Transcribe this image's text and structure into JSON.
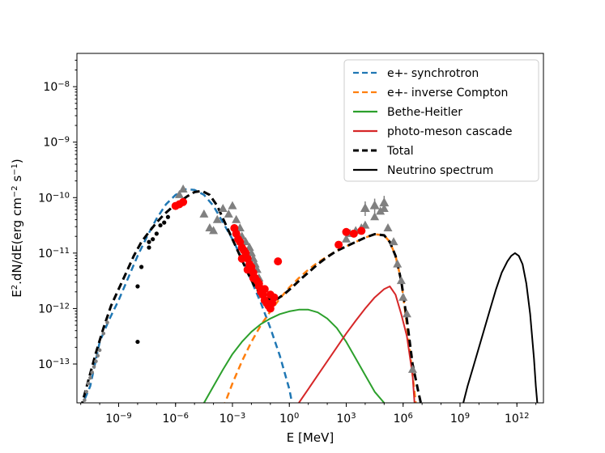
{
  "chart_data": {
    "type": "line",
    "title": "",
    "xlabel": "E [MeV]",
    "ylabel_main": "E",
    "ylabel_sup2": "2",
    "ylabel_rest": ".dN/dE(erg cm",
    "ylabel_sup_neg2": "−2",
    "ylabel_s": " s",
    "ylabel_sup_neg1": "−1",
    "ylabel_close": ")",
    "xscale": "log",
    "yscale": "log",
    "xlim_log10": [
      -11.2,
      13.4
    ],
    "ylim_log10": [
      -13.7,
      -7.4
    ],
    "x_ticks": [
      {
        "log": -9,
        "base": "10",
        "exp": "−9"
      },
      {
        "log": -6,
        "base": "10",
        "exp": "−6"
      },
      {
        "log": -3,
        "base": "10",
        "exp": "−3"
      },
      {
        "log": 0,
        "base": "10",
        "exp": "0"
      },
      {
        "log": 3,
        "base": "10",
        "exp": "3"
      },
      {
        "log": 6,
        "base": "10",
        "exp": "6"
      },
      {
        "log": 9,
        "base": "10",
        "exp": "9"
      },
      {
        "log": 12,
        "base": "10",
        "exp": "12"
      }
    ],
    "y_ticks": [
      {
        "log": -8,
        "base": "10",
        "exp": "−8"
      },
      {
        "log": -9,
        "base": "10",
        "exp": "−9"
      },
      {
        "log": -10,
        "base": "10",
        "exp": "−10"
      },
      {
        "log": -11,
        "base": "10",
        "exp": "−11"
      },
      {
        "log": -12,
        "base": "10",
        "exp": "−12"
      },
      {
        "log": -13,
        "base": "10",
        "exp": "−13"
      }
    ],
    "legend_position": "top-right",
    "series": [
      {
        "name": "e+- synchrotron",
        "color": "#1f77b4",
        "dash": true,
        "log_x": [
          -11.0,
          -10.5,
          -10.0,
          -9.5,
          -9.0,
          -8.5,
          -8.0,
          -7.5,
          -7.0,
          -6.5,
          -6.0,
          -5.5,
          -5.0,
          -4.5,
          -4.0,
          -3.5,
          -3.0,
          -2.5,
          -2.0,
          -1.5,
          -1.0,
          -0.5,
          0.0,
          0.2
        ],
        "log_y": [
          -13.8,
          -13.4,
          -12.6,
          -12.2,
          -11.85,
          -11.45,
          -11.05,
          -10.7,
          -10.38,
          -10.12,
          -9.95,
          -9.85,
          -9.86,
          -9.95,
          -10.15,
          -10.45,
          -10.75,
          -11.1,
          -11.5,
          -11.9,
          -12.35,
          -12.85,
          -13.45,
          -13.8
        ]
      },
      {
        "name": "e+- inverse Compton",
        "color": "#ff7f0e",
        "dash": true,
        "log_x": [
          -3.5,
          -3.0,
          -2.5,
          -2.0,
          -1.5,
          -1.0,
          -0.5,
          0.0,
          0.5,
          1.0,
          1.5,
          2.0,
          2.5,
          3.0,
          3.5,
          4.0,
          4.5,
          5.0,
          5.3,
          5.6,
          5.9,
          6.2,
          6.5,
          6.7
        ],
        "log_y": [
          -13.8,
          -13.35,
          -12.95,
          -12.6,
          -12.3,
          -12.05,
          -11.82,
          -11.62,
          -11.45,
          -11.3,
          -11.17,
          -11.06,
          -10.96,
          -10.88,
          -10.8,
          -10.72,
          -10.66,
          -10.68,
          -10.8,
          -11.05,
          -11.5,
          -12.3,
          -13.2,
          -13.8
        ]
      },
      {
        "name": "Bethe-Heitler",
        "color": "#2ca02c",
        "dash": false,
        "log_x": [
          -4.5,
          -4.0,
          -3.5,
          -3.0,
          -2.5,
          -2.0,
          -1.5,
          -1.0,
          -0.5,
          0.0,
          0.5,
          1.0,
          1.5,
          2.0,
          2.5,
          3.0,
          3.5,
          4.0,
          4.5,
          5.0
        ],
        "log_y": [
          -13.7,
          -13.4,
          -13.1,
          -12.82,
          -12.6,
          -12.42,
          -12.28,
          -12.18,
          -12.1,
          -12.05,
          -12.02,
          -12.02,
          -12.07,
          -12.18,
          -12.35,
          -12.6,
          -12.9,
          -13.2,
          -13.5,
          -13.7
        ]
      },
      {
        "name": "photo-meson cascade",
        "color": "#d62728",
        "dash": false,
        "log_x": [
          0.5,
          1.0,
          1.5,
          2.0,
          2.5,
          3.0,
          3.5,
          4.0,
          4.5,
          5.0,
          5.3,
          5.6,
          5.9,
          6.2,
          6.5,
          6.6
        ],
        "log_y": [
          -13.7,
          -13.45,
          -13.2,
          -12.95,
          -12.7,
          -12.45,
          -12.22,
          -12.0,
          -11.8,
          -11.65,
          -11.6,
          -11.75,
          -12.1,
          -12.5,
          -13.2,
          -13.7
        ]
      },
      {
        "name": "Total",
        "color": "#000000",
        "dash": true,
        "bold": true,
        "log_x": [
          -11.0,
          -10.6,
          -10.2,
          -9.8,
          -9.4,
          -9.0,
          -8.6,
          -8.2,
          -7.8,
          -7.4,
          -7.0,
          -6.6,
          -6.2,
          -5.8,
          -5.4,
          -5.0,
          -4.6,
          -4.2,
          -3.8,
          -3.4,
          -3.0,
          -2.6,
          -2.2,
          -1.8,
          -1.4,
          -1.0,
          -0.6,
          -0.2,
          0.2,
          0.6,
          1.0,
          1.5,
          2.0,
          2.5,
          3.0,
          3.5,
          4.0,
          4.5,
          5.0,
          5.3,
          5.6,
          5.9,
          6.2,
          6.5,
          6.8,
          7.0
        ],
        "log_y": [
          -13.8,
          -13.3,
          -12.8,
          -12.35,
          -11.95,
          -11.65,
          -11.35,
          -11.05,
          -10.8,
          -10.62,
          -10.45,
          -10.3,
          -10.18,
          -10.08,
          -9.98,
          -9.9,
          -9.88,
          -9.95,
          -10.15,
          -10.45,
          -10.75,
          -11.05,
          -11.35,
          -11.62,
          -11.78,
          -11.85,
          -11.82,
          -11.72,
          -11.6,
          -11.47,
          -11.35,
          -11.2,
          -11.07,
          -10.96,
          -10.88,
          -10.8,
          -10.72,
          -10.66,
          -10.68,
          -10.8,
          -11.05,
          -11.5,
          -12.2,
          -13.0,
          -13.5,
          -13.8
        ]
      },
      {
        "name": "Neutrino spectrum",
        "color": "#000000",
        "dash": false,
        "log_x": [
          9.1,
          9.4,
          9.7,
          10.0,
          10.3,
          10.6,
          10.9,
          11.2,
          11.5,
          11.7,
          11.9,
          12.1,
          12.3,
          12.5,
          12.7,
          12.9,
          13.0,
          13.1
        ],
        "log_y": [
          -13.8,
          -13.4,
          -13.05,
          -12.7,
          -12.35,
          -12.0,
          -11.65,
          -11.35,
          -11.15,
          -11.05,
          -11.0,
          -11.05,
          -11.2,
          -11.55,
          -12.1,
          -12.9,
          -13.4,
          -13.8
        ]
      }
    ],
    "observations": [
      {
        "name": "grey-dots",
        "color": "#7f7f7f",
        "marker": "circle",
        "log_x": [
          -10.8,
          -10.7,
          -10.6,
          -10.5,
          -10.4,
          -10.3,
          -10.2,
          -10.1,
          -10.0,
          -9.8,
          -9.6
        ],
        "log_y": [
          -13.65,
          -13.5,
          -13.35,
          -13.25,
          -13.15,
          -13.05,
          -12.95,
          -12.85,
          -12.75,
          -12.45,
          -12.25
        ]
      },
      {
        "name": "black-dots",
        "color": "#000000",
        "marker": "circle",
        "log_x": [
          -8.0,
          -7.8,
          -7.4,
          -7.2,
          -7.0,
          -6.8,
          -6.6,
          -6.4,
          -8.0,
          -7.4
        ],
        "log_y": [
          -11.6,
          -11.25,
          -10.9,
          -10.75,
          -10.65,
          -10.5,
          -10.45,
          -10.35,
          -12.6,
          -10.8
        ]
      },
      {
        "name": "grey-triangles",
        "color": "#808080",
        "marker": "triangle",
        "log_x": [
          -5.8,
          -5.6,
          -4.5,
          -4.2,
          -4.0,
          -3.8,
          -3.5,
          -3.2,
          -3.0,
          -2.8,
          -2.6,
          -2.5,
          -2.3,
          -2.1,
          -2.0,
          -1.9,
          -1.8,
          -1.7,
          -1.6,
          -1.5,
          -1.4,
          3.0,
          3.2,
          3.5,
          3.8,
          4.0,
          4.5,
          4.8,
          5.0,
          5.2,
          5.5,
          5.7,
          5.9,
          6.0,
          6.2,
          6.5
        ],
        "log_y": [
          -9.95,
          -9.85,
          -10.3,
          -10.55,
          -10.6,
          -10.4,
          -10.2,
          -10.3,
          -10.15,
          -10.4,
          -10.55,
          -10.7,
          -10.8,
          -10.9,
          -11.0,
          -11.1,
          -11.2,
          -11.3,
          -11.45,
          -11.6,
          -11.75,
          -10.75,
          -10.65,
          -10.6,
          -10.55,
          -10.5,
          -10.35,
          -10.25,
          -10.2,
          -10.55,
          -10.8,
          -11.2,
          -11.5,
          -11.8,
          -12.1,
          -13.1
        ]
      },
      {
        "name": "grey-stars",
        "color": "#808080",
        "marker": "star",
        "log_x": [
          4.0,
          4.5,
          5.0
        ],
        "log_y": [
          -10.2,
          -10.15,
          -10.1
        ]
      },
      {
        "name": "red-points",
        "color": "#ff0000",
        "marker": "circle",
        "log_x": [
          -6.0,
          -5.8,
          -5.6,
          -2.9,
          -2.8,
          -2.7,
          -2.6,
          -2.5,
          -2.4,
          -2.3,
          -2.2,
          -2.1,
          -2.0,
          -1.9,
          -1.8,
          -1.7,
          -1.6,
          -1.5,
          -1.4,
          -1.3,
          -1.2,
          -1.1,
          -1.0,
          -0.9,
          -0.8,
          -0.6,
          -2.5,
          -2.2,
          -1.9,
          -1.6,
          -1.3,
          -1.0,
          2.6,
          3.0,
          3.4,
          3.8
        ],
        "log_y": [
          -10.15,
          -10.12,
          -10.08,
          -10.55,
          -10.65,
          -10.75,
          -10.8,
          -10.9,
          -10.95,
          -11.0,
          -11.1,
          -11.2,
          -11.25,
          -11.35,
          -11.45,
          -11.5,
          -11.6,
          -11.7,
          -11.75,
          -11.85,
          -11.9,
          -11.95,
          -12.0,
          -11.9,
          -11.8,
          -11.15,
          -11.1,
          -11.3,
          -11.45,
          -11.55,
          -11.65,
          -11.75,
          -10.85,
          -10.62,
          -10.65,
          -10.6
        ]
      }
    ]
  }
}
